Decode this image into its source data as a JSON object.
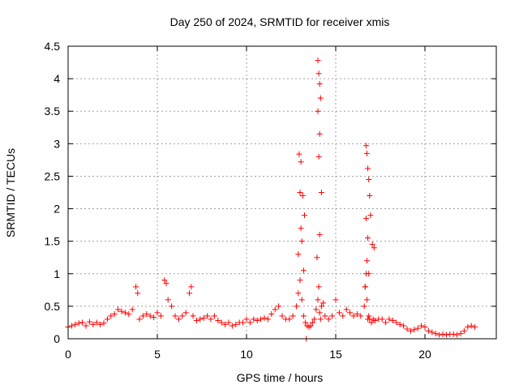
{
  "chart_data": {
    "type": "scatter",
    "title": "Day 250 of 2024, SRMTID for receiver xmis",
    "xlabel": "GPS time / hours",
    "ylabel": "SRMTID / TECUs",
    "xlim": [
      0,
      24
    ],
    "ylim": [
      0,
      4.5
    ],
    "xticks": [
      0,
      5,
      10,
      15,
      20
    ],
    "xtick_labels": [
      "0",
      "5",
      "10",
      "15",
      "20"
    ],
    "yticks": [
      0,
      0.5,
      1,
      1.5,
      2,
      2.5,
      3,
      3.5,
      4,
      4.5
    ],
    "ytick_labels": [
      "0",
      "0.5",
      "1",
      "1.5",
      "2",
      "2.5",
      "3",
      "3.5",
      "4",
      "4.5"
    ],
    "grid": true,
    "marker": "+",
    "color": "#ff0000",
    "series": [
      {
        "name": "SRMTID",
        "x": [
          0.0,
          0.2,
          0.4,
          0.6,
          0.8,
          1.0,
          1.2,
          1.4,
          1.6,
          1.8,
          2.0,
          2.2,
          2.4,
          2.6,
          2.8,
          3.0,
          3.2,
          3.4,
          3.6,
          3.8,
          3.9,
          4.0,
          4.2,
          4.4,
          4.6,
          4.8,
          5.0,
          5.2,
          5.4,
          5.5,
          5.6,
          5.8,
          6.0,
          6.2,
          6.4,
          6.6,
          6.8,
          6.9,
          7.0,
          7.2,
          7.4,
          7.6,
          7.8,
          8.0,
          8.2,
          8.4,
          8.6,
          8.8,
          9.0,
          9.2,
          9.4,
          9.6,
          9.8,
          10.0,
          10.2,
          10.4,
          10.6,
          10.8,
          11.0,
          11.2,
          11.4,
          11.6,
          11.8,
          12.0,
          12.2,
          12.4,
          12.6,
          12.8,
          12.9,
          13.0,
          13.1,
          13.2,
          13.3,
          13.4,
          13.5,
          13.6,
          13.7,
          13.8,
          13.9,
          14.0,
          14.05,
          14.1,
          14.15,
          14.2,
          14.3,
          14.4,
          14.6,
          14.8,
          15.0,
          15.2,
          15.4,
          15.6,
          15.8,
          16.0,
          16.2,
          16.4,
          16.6,
          16.65,
          16.7,
          16.75,
          16.8,
          16.85,
          16.9,
          17.0,
          17.1,
          17.2,
          17.4,
          17.6,
          17.8,
          18.0,
          18.2,
          18.4,
          18.6,
          18.8,
          19.0,
          19.2,
          19.4,
          19.6,
          19.8,
          20.0,
          20.2,
          20.4,
          20.6,
          20.8,
          21.0,
          21.2,
          21.4,
          21.6,
          21.8,
          22.0,
          22.2,
          22.4,
          22.6,
          22.8,
          12.95,
          13.05,
          13.15,
          13.25,
          13.0,
          13.1,
          12.9,
          13.2,
          13.05,
          14.0,
          14.05,
          14.1,
          14.15,
          14.0,
          14.1,
          14.05,
          14.2,
          14.1,
          13.95,
          16.7,
          16.75,
          16.8,
          16.85,
          16.9,
          16.7,
          16.8,
          16.95,
          17.05,
          16.75,
          16.85,
          16.65,
          17.15,
          13.35
        ],
        "y": [
          0.18,
          0.2,
          0.22,
          0.24,
          0.25,
          0.2,
          0.26,
          0.22,
          0.25,
          0.22,
          0.24,
          0.3,
          0.35,
          0.38,
          0.45,
          0.42,
          0.4,
          0.38,
          0.45,
          0.8,
          0.7,
          0.3,
          0.35,
          0.38,
          0.35,
          0.33,
          0.4,
          0.35,
          0.9,
          0.85,
          0.6,
          0.5,
          0.35,
          0.3,
          0.35,
          0.4,
          0.7,
          0.8,
          0.35,
          0.28,
          0.3,
          0.32,
          0.35,
          0.3,
          0.35,
          0.28,
          0.25,
          0.22,
          0.25,
          0.2,
          0.22,
          0.25,
          0.25,
          0.3,
          0.25,
          0.3,
          0.28,
          0.3,
          0.32,
          0.3,
          0.38,
          0.45,
          0.5,
          0.35,
          0.3,
          0.3,
          0.35,
          0.5,
          0.7,
          0.9,
          0.6,
          0.35,
          0.25,
          0.2,
          0.18,
          0.2,
          0.25,
          0.3,
          0.45,
          0.6,
          0.8,
          0.4,
          0.3,
          0.5,
          0.55,
          0.35,
          0.3,
          0.35,
          0.6,
          0.4,
          0.35,
          0.45,
          0.4,
          0.35,
          0.38,
          0.35,
          0.5,
          0.8,
          1.0,
          0.6,
          0.3,
          0.35,
          0.3,
          0.25,
          0.3,
          0.28,
          0.3,
          0.3,
          0.25,
          0.3,
          0.28,
          0.25,
          0.22,
          0.2,
          0.15,
          0.12,
          0.14,
          0.16,
          0.2,
          0.18,
          0.12,
          0.1,
          0.08,
          0.06,
          0.07,
          0.06,
          0.07,
          0.07,
          0.06,
          0.08,
          0.12,
          0.18,
          0.2,
          0.18,
          2.84,
          2.72,
          2.2,
          1.9,
          2.25,
          1.5,
          1.3,
          1.05,
          1.7,
          4.28,
          4.08,
          3.92,
          3.7,
          3.5,
          3.15,
          2.8,
          2.25,
          1.6,
          1.25,
          2.97,
          2.85,
          2.62,
          2.45,
          2.2,
          1.85,
          1.55,
          1.9,
          1.45,
          1.2,
          1.0,
          0.8,
          1.4,
          0.0
        ]
      }
    ]
  }
}
